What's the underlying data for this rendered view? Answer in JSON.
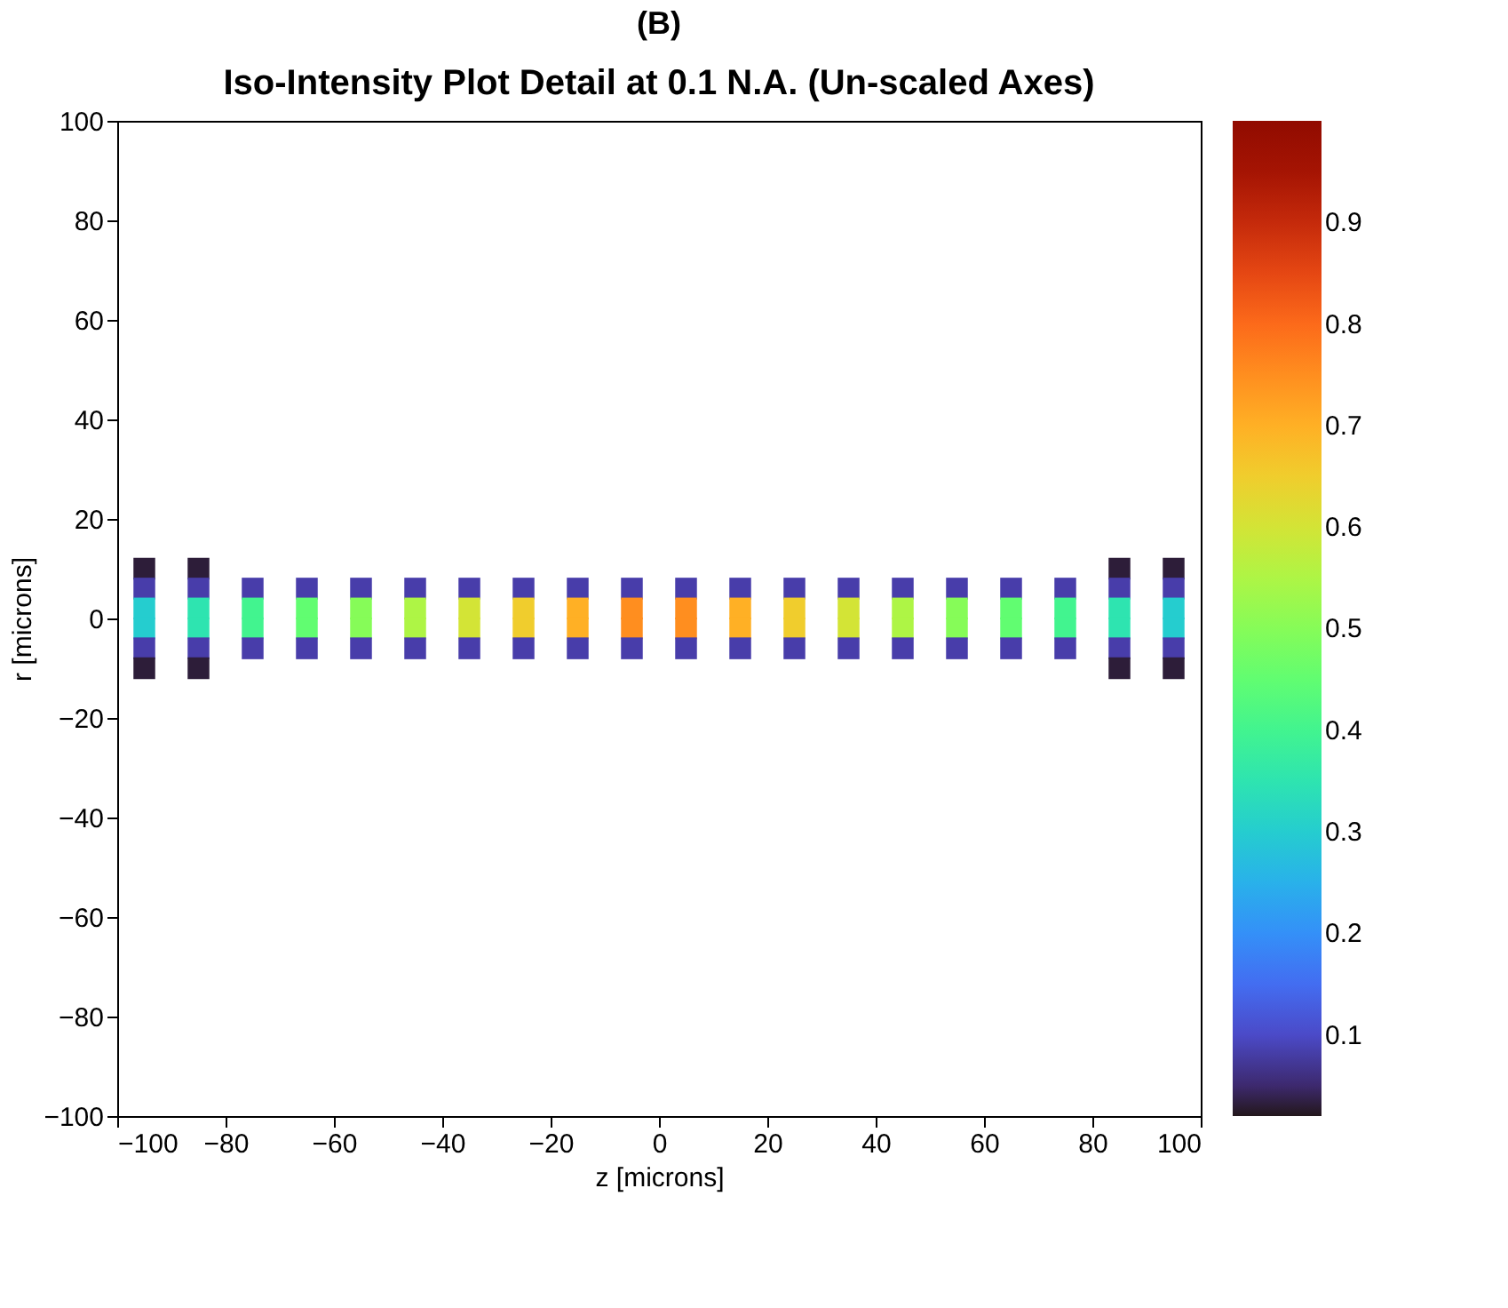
{
  "chart_data": {
    "type": "scatter",
    "title": "(B)",
    "subtitle": "Iso-Intensity Plot Detail at 0.1 N.A. (Un-scaled Axes)",
    "xlabel": "z [microns]",
    "ylabel": "r [microns]",
    "xlim": [
      -100,
      100
    ],
    "ylim": [
      -100,
      100
    ],
    "xticks": [
      -100,
      -80,
      -60,
      -40,
      -20,
      0,
      20,
      40,
      60,
      80,
      100
    ],
    "yticks": [
      -100,
      -80,
      -60,
      -40,
      -20,
      0,
      20,
      40,
      60,
      80,
      100
    ],
    "clim": [
      0.02,
      1.0
    ],
    "cticks": [
      0.1,
      0.2,
      0.3,
      0.4,
      0.5,
      0.6,
      0.7,
      0.8,
      0.9
    ],
    "marker": "square",
    "x": [
      -95,
      -85,
      85,
      95,
      -95,
      -85,
      -75,
      -65,
      -55,
      -45,
      -35,
      -25,
      -15,
      -5,
      5,
      15,
      25,
      35,
      45,
      55,
      65,
      75,
      85,
      95,
      -95,
      -85,
      -75,
      -65,
      -55,
      -45,
      -35,
      -25,
      -15,
      -5,
      5,
      15,
      25,
      35,
      45,
      55,
      65,
      75,
      85,
      95,
      -95,
      -85,
      -75,
      -65,
      -55,
      -45,
      -35,
      -25,
      -15,
      -5,
      5,
      15,
      25,
      35,
      45,
      55,
      65,
      75,
      85,
      95,
      -95,
      -85,
      -75,
      -65,
      -55,
      -45,
      -35,
      -25,
      -15,
      -5,
      5,
      15,
      25,
      35,
      45,
      55,
      65,
      75,
      85,
      95,
      -95,
      -85,
      85,
      95
    ],
    "values": [
      10,
      10,
      10,
      10,
      6,
      6,
      6,
      6,
      6,
      6,
      6,
      6,
      6,
      6,
      6,
      6,
      6,
      6,
      6,
      6,
      6,
      6,
      6,
      6,
      2,
      2,
      2,
      2,
      2,
      2,
      2,
      2,
      2,
      2,
      2,
      2,
      2,
      2,
      2,
      2,
      2,
      2,
      2,
      2,
      -2,
      -2,
      -2,
      -2,
      -2,
      -2,
      -2,
      -2,
      -2,
      -2,
      -2,
      -2,
      -2,
      -2,
      -2,
      -2,
      -2,
      -2,
      -2,
      -2,
      -6,
      -6,
      -6,
      -6,
      -6,
      -6,
      -6,
      -6,
      -6,
      -6,
      -6,
      -6,
      -6,
      -6,
      -6,
      -6,
      -6,
      -6,
      -6,
      -6,
      -10,
      -10,
      -10,
      -10
    ],
    "cvalues": [
      0.03,
      0.03,
      0.03,
      0.03,
      0.08,
      0.08,
      0.08,
      0.08,
      0.08,
      0.08,
      0.08,
      0.08,
      0.08,
      0.08,
      0.08,
      0.08,
      0.08,
      0.08,
      0.08,
      0.08,
      0.08,
      0.08,
      0.08,
      0.08,
      0.3,
      0.35,
      0.4,
      0.45,
      0.5,
      0.55,
      0.6,
      0.65,
      0.7,
      0.75,
      0.75,
      0.7,
      0.65,
      0.6,
      0.55,
      0.5,
      0.45,
      0.4,
      0.35,
      0.3,
      0.3,
      0.35,
      0.4,
      0.45,
      0.5,
      0.55,
      0.6,
      0.65,
      0.7,
      0.75,
      0.75,
      0.7,
      0.65,
      0.6,
      0.55,
      0.5,
      0.45,
      0.4,
      0.35,
      0.3,
      0.08,
      0.08,
      0.08,
      0.08,
      0.08,
      0.08,
      0.08,
      0.08,
      0.08,
      0.08,
      0.08,
      0.08,
      0.08,
      0.08,
      0.08,
      0.08,
      0.08,
      0.08,
      0.08,
      0.08,
      0.03,
      0.03,
      0.03,
      0.03
    ]
  }
}
